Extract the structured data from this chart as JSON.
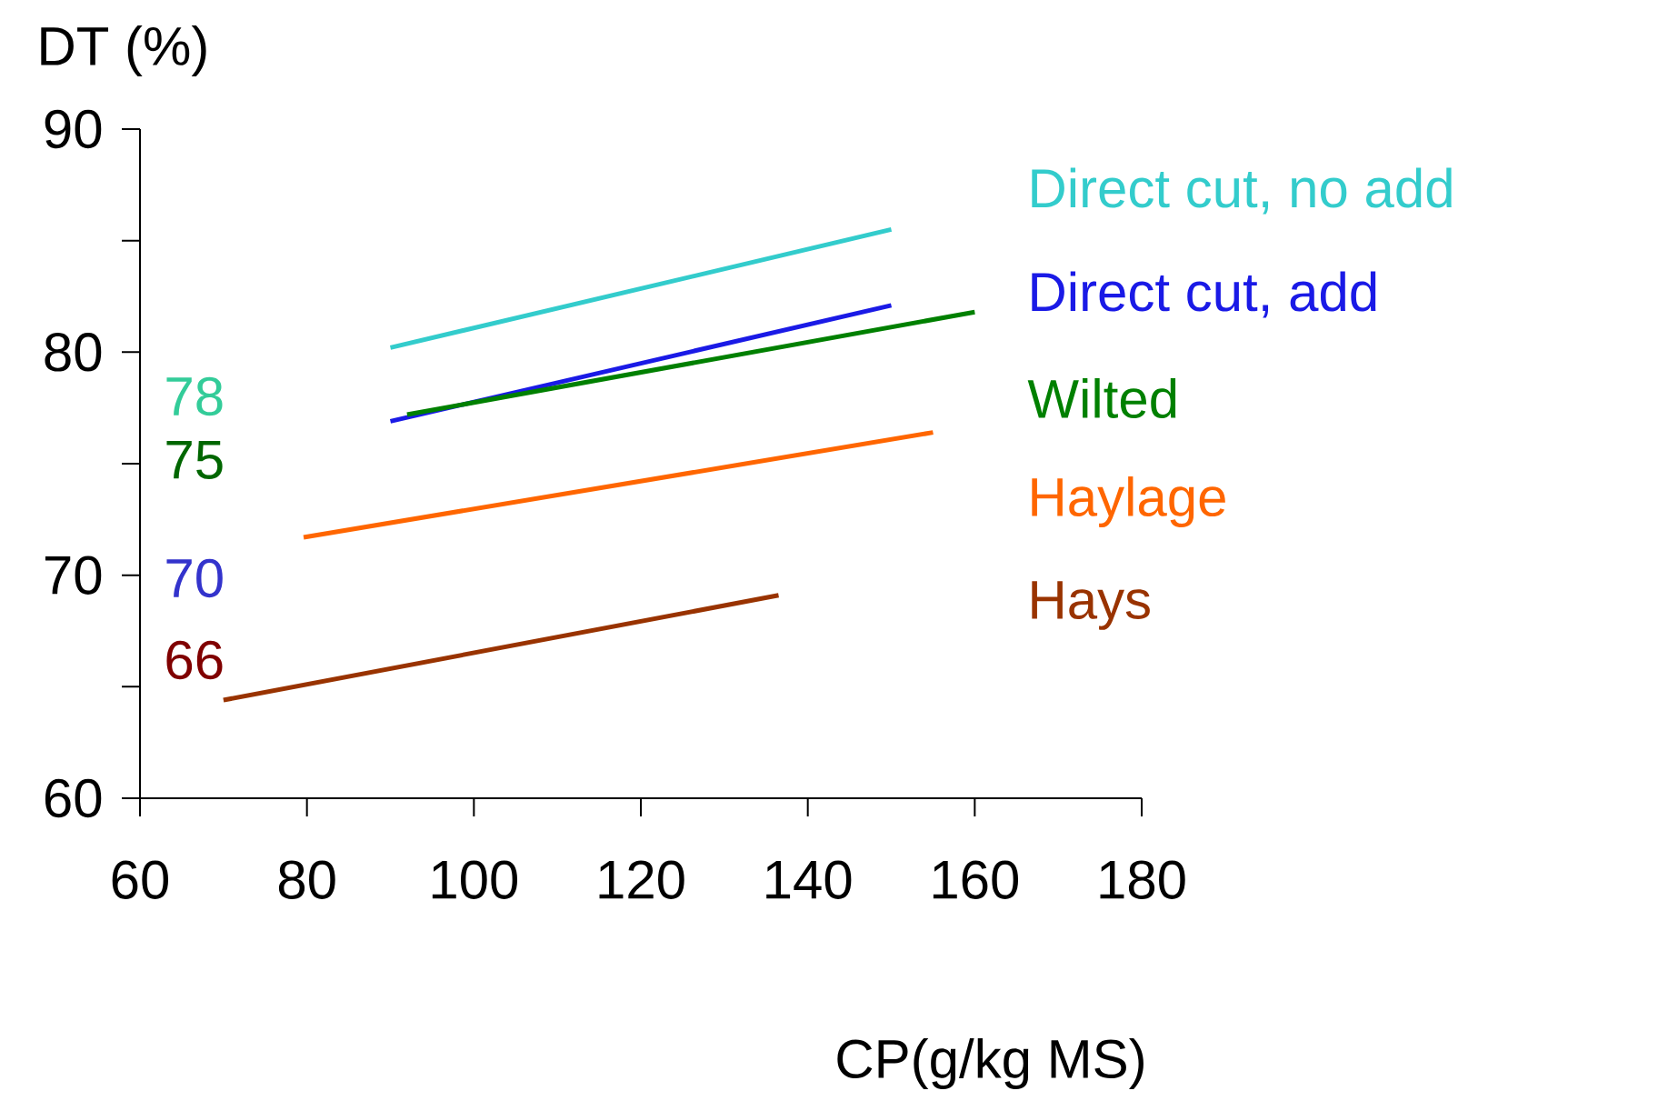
{
  "chart_data": {
    "type": "line",
    "xlabel": "CP(g/kg MS)",
    "ylabel": "DT (%)",
    "xlim": [
      60,
      180
    ],
    "xticks": [
      60,
      80,
      100,
      120,
      140,
      160,
      180
    ],
    "ylim": [
      60,
      90
    ],
    "yticks": [
      60,
      70,
      80,
      90
    ],
    "legend": "right",
    "marker": "none",
    "grid": false,
    "series": [
      {
        "name": "Direct cut, no add",
        "color": "#33cccc",
        "x": [
          90,
          150
        ],
        "values": [
          80.2,
          85.5
        ]
      },
      {
        "name": "Direct cut, add",
        "color": "#1a1ae6",
        "x": [
          90,
          150
        ],
        "values": [
          76.9,
          82.1
        ]
      },
      {
        "name": "Wilted",
        "color": "#008000",
        "x": [
          92,
          160
        ],
        "values": [
          77.2,
          81.8
        ]
      },
      {
        "name": "Haylage",
        "color": "#ff6600",
        "x": [
          79.6,
          155
        ],
        "values": [
          71.7,
          76.4
        ]
      },
      {
        "name": "Hays",
        "color": "#993300",
        "x": [
          70,
          136.5
        ],
        "values": [
          64.4,
          69.1
        ]
      }
    ],
    "annotations": [
      "78",
      "75",
      "70",
      "66"
    ]
  }
}
